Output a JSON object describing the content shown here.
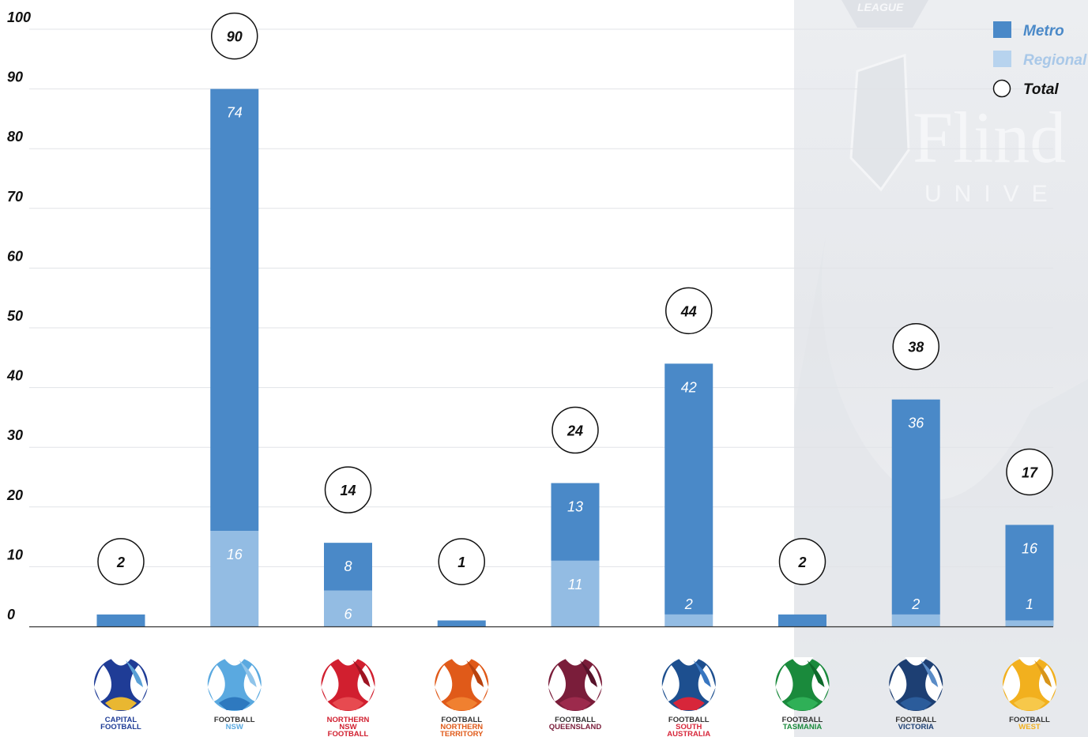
{
  "chart_data": {
    "type": "bar",
    "stacked": true,
    "categories": [
      "Capital Football",
      "Football NSW",
      "Northern NSW Football",
      "Football Northern Territory",
      "Football Queensland",
      "Football South Australia",
      "Football Tasmania",
      "Football Victoria",
      "Football West"
    ],
    "series": [
      {
        "name": "Metro",
        "values": [
          2,
          74,
          8,
          1,
          13,
          42,
          2,
          36,
          16
        ]
      },
      {
        "name": "Regional",
        "values": [
          0,
          16,
          6,
          0,
          11,
          2,
          0,
          2,
          1
        ]
      }
    ],
    "totals": [
      2,
      90,
      14,
      1,
      24,
      44,
      2,
      38,
      17
    ],
    "total_legend": "Total",
    "segment_labels_shown": {
      "Metro": [
        false,
        true,
        true,
        false,
        true,
        true,
        false,
        true,
        true
      ],
      "Regional": [
        false,
        true,
        true,
        false,
        true,
        true,
        false,
        true,
        true
      ]
    },
    "ylim": [
      0,
      100
    ],
    "yticks": [
      0,
      10,
      20,
      30,
      40,
      50,
      60,
      70,
      80,
      90,
      100
    ],
    "xlabel": "",
    "ylabel": "",
    "grid": true,
    "legend_position": "top-right",
    "colors": {
      "Metro": "#4a89c8",
      "Regional": "#93bce3",
      "total_circle": "#111111"
    }
  },
  "logos": [
    {
      "icon": "capital-football-logo",
      "line1": "CAPITAL",
      "line2": "FOOTBALL",
      "line3": "",
      "colors": [
        "#1f3c96",
        "#e9b731",
        "#5aa0d6"
      ],
      "text_color": "#1f3c96"
    },
    {
      "icon": "football-nsw-logo",
      "line1": "FOOTBALL",
      "line2": "NSW",
      "line3": "",
      "colors": [
        "#5aa9e0",
        "#2e79bf",
        "#8fc4ea"
      ],
      "text_color": "#5aa9e0"
    },
    {
      "icon": "northern-nsw-football-logo",
      "line1": "NORTHERN",
      "line2": "NSW",
      "line3": "FOOTBALL",
      "colors": [
        "#d11f2f",
        "#e74a50",
        "#9e1422"
      ],
      "text_color": "#d11f2f"
    },
    {
      "icon": "football-northern-territory-logo",
      "line1": "FOOTBALL",
      "line2": "NORTHERN",
      "line3": "TERRITORY",
      "colors": [
        "#e05a19",
        "#f08030",
        "#b8420f"
      ],
      "text_color": "#e05a19"
    },
    {
      "icon": "football-queensland-logo",
      "line1": "FOOTBALL",
      "line2": "QUEENSLAND",
      "line3": "",
      "colors": [
        "#7a1d3a",
        "#9c2a4c",
        "#57122a"
      ],
      "text_color": "#7a1d3a"
    },
    {
      "icon": "football-south-australia-logo",
      "line1": "FOOTBALL",
      "line2": "SOUTH",
      "line3": "AUSTRALIA",
      "colors": [
        "#1d4f8f",
        "#d7263a",
        "#3876c0"
      ],
      "text_color": "#d7263a"
    },
    {
      "icon": "football-tasmania-logo",
      "line1": "FOOTBALL",
      "line2": "TASMANIA",
      "line3": "",
      "colors": [
        "#1a8a3c",
        "#2fb057",
        "#0e6a2b"
      ],
      "text_color": "#1a8a3c"
    },
    {
      "icon": "football-victoria-logo",
      "line1": "FOOTBALL",
      "line2": "VICTORIA",
      "line3": "",
      "colors": [
        "#1d3f73",
        "#2b5c9b",
        "#5a8cc7"
      ],
      "text_color": "#1d3f73"
    },
    {
      "icon": "football-west-logo",
      "line1": "FOOTBALL",
      "line2": "WEST",
      "line3": "",
      "colors": [
        "#f2b01e",
        "#f7c84a",
        "#d8951a"
      ],
      "text_color": "#f2b01e"
    }
  ],
  "background_watermark": {
    "icon": "flinders-university-watermark",
    "line1": "Flind",
    "line2": "UNIVE",
    "badge": "LEAGUE"
  }
}
